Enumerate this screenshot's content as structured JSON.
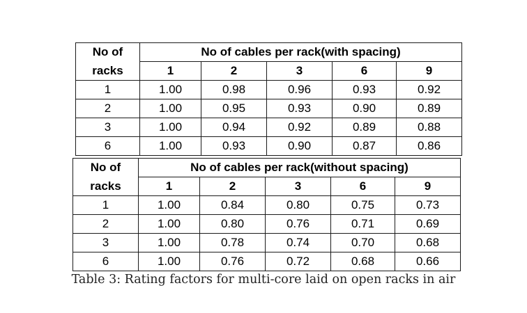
{
  "table_with_spacing": {
    "racks_header_line1": "No of",
    "racks_header_line2": "racks",
    "title": "No of cables per rack(with spacing)",
    "columns": [
      "1",
      "2",
      "3",
      "6",
      "9"
    ],
    "rows": [
      {
        "racks": "1",
        "values": [
          "1.00",
          "0.98",
          "0.96",
          "0.93",
          "0.92"
        ]
      },
      {
        "racks": "2",
        "values": [
          "1.00",
          "0.95",
          "0.93",
          "0.90",
          "0.89"
        ]
      },
      {
        "racks": "3",
        "values": [
          "1.00",
          "0.94",
          "0.92",
          "0.89",
          "0.88"
        ]
      },
      {
        "racks": "6",
        "values": [
          "1.00",
          "0.93",
          "0.90",
          "0.87",
          "0.86"
        ]
      }
    ]
  },
  "table_without_spacing": {
    "racks_header_line1": "No of",
    "racks_header_line2": "racks",
    "title": "No of cables per rack(without  spacing)",
    "columns": [
      "1",
      "2",
      "3",
      "6",
      "9"
    ],
    "rows": [
      {
        "racks": "1",
        "values": [
          "1.00",
          "0.84",
          "0.80",
          "0.75",
          "0.73"
        ]
      },
      {
        "racks": "2",
        "values": [
          "1.00",
          "0.80",
          "0.76",
          "0.71",
          "0.69"
        ]
      },
      {
        "racks": "3",
        "values": [
          "1.00",
          "0.78",
          "0.74",
          "0.70",
          "0.68"
        ]
      },
      {
        "racks": "6",
        "values": [
          "1.00",
          "0.76",
          "0.72",
          "0.68",
          "0.66"
        ]
      }
    ]
  },
  "caption": "Table 3: Rating factors for multi-core laid on open racks in air"
}
